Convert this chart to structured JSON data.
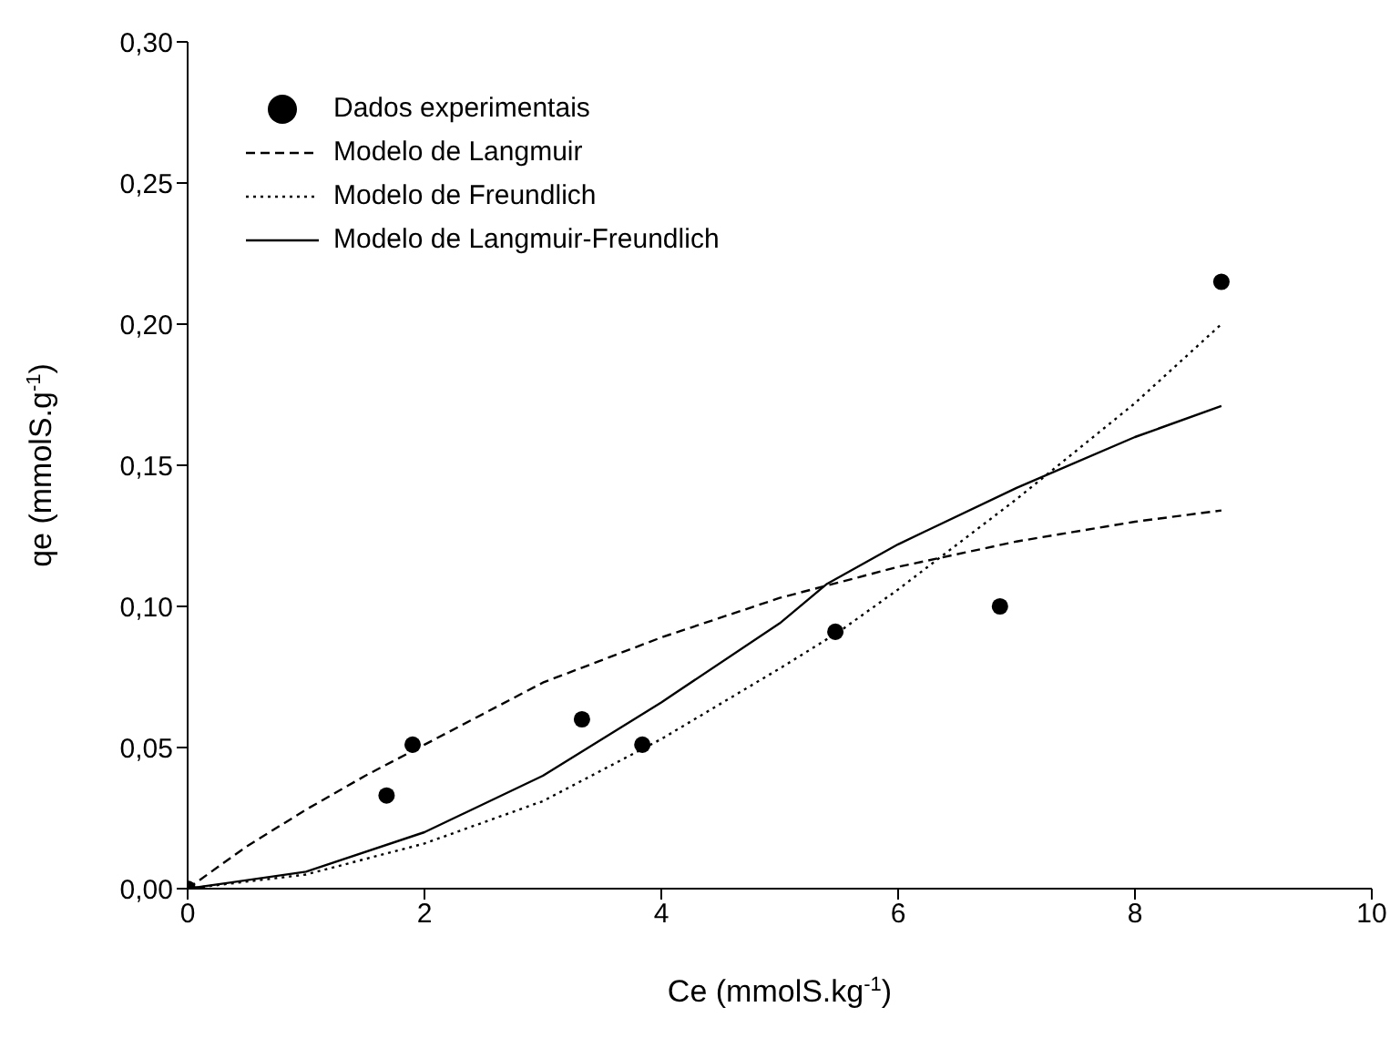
{
  "chart_data": {
    "type": "scatter",
    "xlabel": "Ce (mmolS.kg$^{-1}$)",
    "ylabel": "qe (mmolS.g$^{-1}$)",
    "xlim": [
      0,
      10
    ],
    "xticks": [
      0,
      2,
      4,
      6,
      8,
      10
    ],
    "ylim": [
      0,
      0.3
    ],
    "yticks": [
      {
        "value": 0,
        "label": "0,00"
      },
      {
        "value": 0.05,
        "label": "0,05"
      },
      {
        "value": 0.1,
        "label": "0,10"
      },
      {
        "value": 0.15,
        "label": "0,15"
      },
      {
        "value": 0.2,
        "label": "0,20"
      },
      {
        "value": 0.25,
        "label": "0,25"
      },
      {
        "value": 0.3,
        "label": "0,30"
      }
    ],
    "grid": false,
    "legend": "top left",
    "series": [
      {
        "name": "Dados experimentais",
        "marker": "circle",
        "color": "#000000",
        "x": [
          0,
          1.68,
          1.9,
          3.33,
          3.84,
          5.47,
          6.86,
          8.73
        ],
        "values": [
          0,
          0.033,
          0.051,
          0.06,
          0.051,
          0.091,
          0.1,
          0.215
        ]
      },
      {
        "name": "Modelo de Langmuir",
        "type": "line",
        "line_style": "dashed",
        "marker": "none",
        "color": "#000000",
        "x": [
          0,
          0.5,
          1,
          1.5,
          2,
          3,
          4,
          5,
          6,
          7,
          8,
          8.73
        ],
        "values": [
          0,
          0.015,
          0.028,
          0.04,
          0.051,
          0.073,
          0.089,
          0.103,
          0.114,
          0.123,
          0.13,
          0.134
        ]
      },
      {
        "name": "Modelo de Freundlich",
        "type": "line",
        "line_style": "dotted",
        "marker": "none",
        "color": "#000000",
        "x": [
          0,
          1,
          2,
          3,
          4,
          5,
          5.5,
          6,
          7,
          8,
          8.73
        ],
        "values": [
          0,
          0.005,
          0.016,
          0.031,
          0.053,
          0.078,
          0.091,
          0.106,
          0.138,
          0.172,
          0.2
        ]
      },
      {
        "name": "Modelo de Langmuir-Freundlich",
        "type": "line",
        "line_style": "solid",
        "marker": "none",
        "color": "#000000",
        "x": [
          0,
          1,
          2,
          3,
          4,
          5,
          5.4,
          6,
          7,
          8,
          8.73
        ],
        "values": [
          0,
          0.006,
          0.02,
          0.04,
          0.066,
          0.094,
          0.108,
          0.122,
          0.142,
          0.16,
          0.171
        ]
      }
    ]
  }
}
